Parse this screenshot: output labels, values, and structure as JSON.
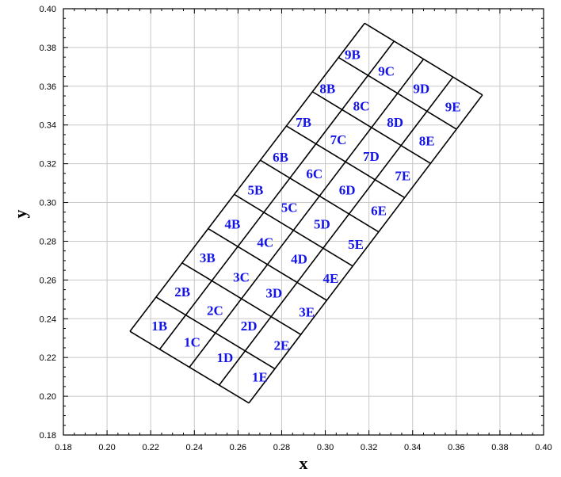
{
  "chart_data": {
    "type": "scatter",
    "title": "",
    "xlabel": "x",
    "ylabel": "y",
    "xlim": [
      0.18,
      0.4
    ],
    "ylim": [
      0.18,
      0.4
    ],
    "xticks": [
      "0.18",
      "0.20",
      "0.22",
      "0.24",
      "0.26",
      "0.28",
      "0.30",
      "0.32",
      "0.34",
      "0.36",
      "0.38",
      "0.40"
    ],
    "yticks": [
      "0.18",
      "0.20",
      "0.22",
      "0.24",
      "0.26",
      "0.28",
      "0.30",
      "0.32",
      "0.34",
      "0.36",
      "0.38",
      "0.40"
    ],
    "grid": true,
    "mesh": {
      "corners": {
        "bottom_left": [
          0.2105,
          0.2335
        ],
        "top_left": [
          0.318,
          0.3925
        ],
        "bottom_right": [
          0.265,
          0.1965
        ],
        "top_right": [
          0.372,
          0.3555
        ]
      },
      "rows": 9,
      "columns": 4
    },
    "cells": [
      {
        "label": "1B",
        "x": 0.224,
        "y": 0.2365
      },
      {
        "label": "1C",
        "x": 0.239,
        "y": 0.228
      },
      {
        "label": "1D",
        "x": 0.254,
        "y": 0.22
      },
      {
        "label": "1E",
        "x": 0.27,
        "y": 0.21
      },
      {
        "label": "2B",
        "x": 0.2345,
        "y": 0.254
      },
      {
        "label": "2C",
        "x": 0.2495,
        "y": 0.2445
      },
      {
        "label": "2D",
        "x": 0.265,
        "y": 0.2365
      },
      {
        "label": "2E",
        "x": 0.28,
        "y": 0.2265
      },
      {
        "label": "3B",
        "x": 0.246,
        "y": 0.2715
      },
      {
        "label": "3C",
        "x": 0.2615,
        "y": 0.2615
      },
      {
        "label": "3D",
        "x": 0.2765,
        "y": 0.2535
      },
      {
        "label": "3E",
        "x": 0.2915,
        "y": 0.2435
      },
      {
        "label": "4B",
        "x": 0.2575,
        "y": 0.289
      },
      {
        "label": "4C",
        "x": 0.2725,
        "y": 0.2795
      },
      {
        "label": "4D",
        "x": 0.288,
        "y": 0.271
      },
      {
        "label": "4E",
        "x": 0.3025,
        "y": 0.261
      },
      {
        "label": "5B",
        "x": 0.268,
        "y": 0.3065
      },
      {
        "label": "5C",
        "x": 0.2835,
        "y": 0.2975
      },
      {
        "label": "5D",
        "x": 0.2985,
        "y": 0.289
      },
      {
        "label": "5E",
        "x": 0.314,
        "y": 0.2785
      },
      {
        "label": "6B",
        "x": 0.2795,
        "y": 0.3235
      },
      {
        "label": "6C",
        "x": 0.295,
        "y": 0.315
      },
      {
        "label": "6D",
        "x": 0.31,
        "y": 0.3065
      },
      {
        "label": "6E",
        "x": 0.3245,
        "y": 0.296
      },
      {
        "label": "7B",
        "x": 0.29,
        "y": 0.3415
      },
      {
        "label": "7C",
        "x": 0.306,
        "y": 0.3325
      },
      {
        "label": "7D",
        "x": 0.321,
        "y": 0.324
      },
      {
        "label": "7E",
        "x": 0.3355,
        "y": 0.314
      },
      {
        "label": "8B",
        "x": 0.301,
        "y": 0.359
      },
      {
        "label": "8C",
        "x": 0.3165,
        "y": 0.35
      },
      {
        "label": "8D",
        "x": 0.332,
        "y": 0.3415
      },
      {
        "label": "8E",
        "x": 0.3465,
        "y": 0.332
      },
      {
        "label": "9B",
        "x": 0.3125,
        "y": 0.3765
      },
      {
        "label": "9C",
        "x": 0.328,
        "y": 0.368
      },
      {
        "label": "9D",
        "x": 0.344,
        "y": 0.359
      },
      {
        "label": "9E",
        "x": 0.3585,
        "y": 0.3495
      }
    ],
    "colors": {
      "cell_label": "#1414e6",
      "grid": "#c8c8c8",
      "mesh": "#000000"
    }
  }
}
